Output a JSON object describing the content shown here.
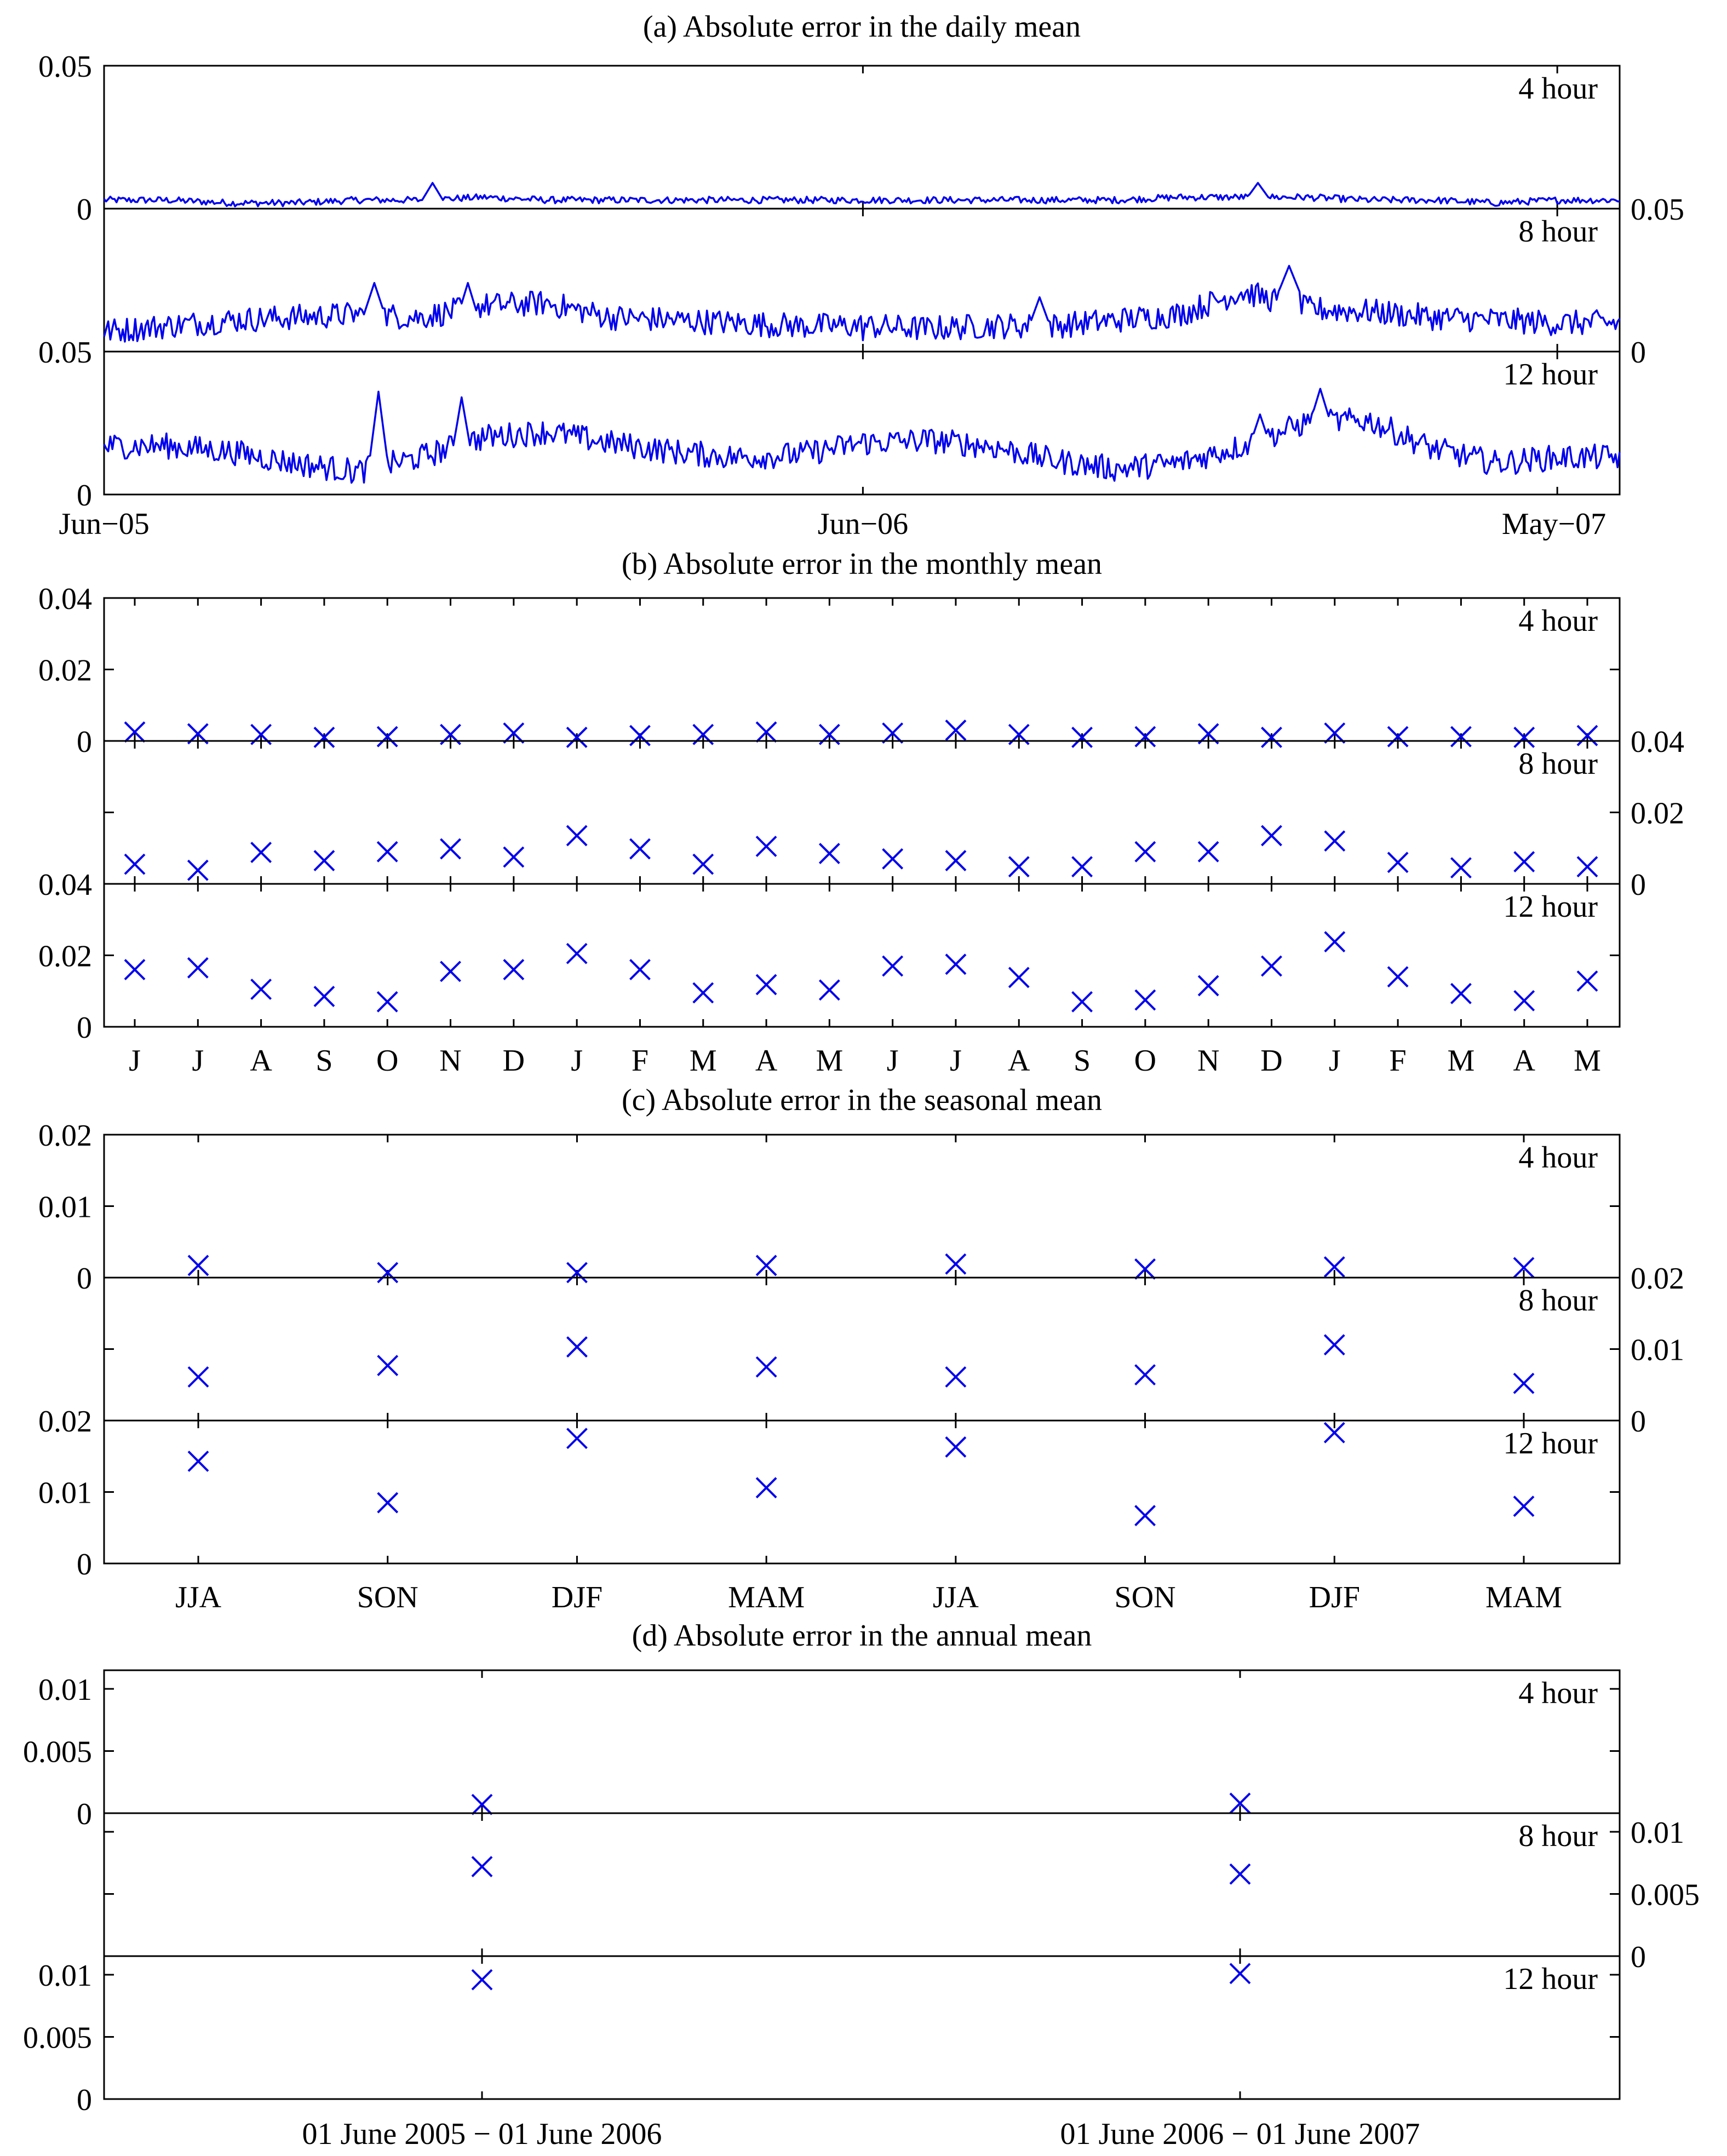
{
  "chart_data": [
    {
      "type": "line",
      "title": "(a) Absolute error in the daily mean",
      "x_tick_labels": [
        "Jun−05",
        "Jun−06",
        "May−07"
      ],
      "x_range": [
        "2005-06-01",
        "2007-05-31"
      ],
      "n_days": 730,
      "stacked_rows": [
        {
          "label": "4 hour",
          "y_axis_side": "left",
          "ylim": [
            0,
            0.05
          ],
          "tick_labels": [
            "0",
            "0.05"
          ],
          "note": "values read approx.; daily noise ~0.001-0.004",
          "baseline_by_month": [
            0.003,
            0.003,
            0.002,
            0.002,
            0.003,
            0.003,
            0.004,
            0.003,
            0.003,
            0.003,
            0.003,
            0.003,
            0.003,
            0.003,
            0.003,
            0.003,
            0.003,
            0.004,
            0.004,
            0.004,
            0.003,
            0.003,
            0.002,
            0.003
          ],
          "peaks": [
            {
              "day": 158,
              "value": 0.009
            },
            {
              "day": 555,
              "value": 0.009
            }
          ]
        },
        {
          "label": "8 hour",
          "y_axis_side": "right",
          "ylim": [
            0,
            0.05
          ],
          "tick_labels": [
            "0",
            "0.05"
          ],
          "baseline_by_month": [
            0.007,
            0.009,
            0.011,
            0.012,
            0.013,
            0.012,
            0.016,
            0.017,
            0.012,
            0.011,
            0.01,
            0.009,
            0.009,
            0.008,
            0.009,
            0.009,
            0.011,
            0.013,
            0.021,
            0.015,
            0.014,
            0.012,
            0.011,
            0.01
          ],
          "peaks": [
            {
              "day": 130,
              "value": 0.024
            },
            {
              "day": 175,
              "value": 0.024
            },
            {
              "day": 570,
              "value": 0.03
            },
            {
              "day": 450,
              "value": 0.019
            }
          ]
        },
        {
          "label": "12 hour",
          "y_axis_side": "left",
          "ylim": [
            0,
            0.05
          ],
          "tick_labels": [
            "0",
            "0.05"
          ],
          "baseline_by_month": [
            0.017,
            0.017,
            0.015,
            0.011,
            0.008,
            0.013,
            0.02,
            0.022,
            0.018,
            0.015,
            0.013,
            0.014,
            0.018,
            0.019,
            0.017,
            0.012,
            0.009,
            0.011,
            0.017,
            0.025,
            0.026,
            0.016,
            0.011,
            0.013
          ],
          "peaks": [
            {
              "day": 132,
              "value": 0.036
            },
            {
              "day": 172,
              "value": 0.034
            },
            {
              "day": 556,
              "value": 0.028
            },
            {
              "day": 585,
              "value": 0.037
            }
          ]
        }
      ]
    },
    {
      "type": "scatter",
      "title": "(b) Absolute error in the monthly mean",
      "categories": [
        "J",
        "J",
        "A",
        "S",
        "O",
        "N",
        "D",
        "J",
        "F",
        "M",
        "A",
        "M",
        "J",
        "J",
        "A",
        "S",
        "O",
        "N",
        "D",
        "J",
        "F",
        "M",
        "A",
        "M"
      ],
      "stacked_rows": [
        {
          "label": "4 hour",
          "y_axis_side": "left",
          "ylim": [
            0,
            0.04
          ],
          "tick_labels": [
            "0",
            "0.02",
            "0.04"
          ],
          "values": [
            0.0025,
            0.002,
            0.0018,
            0.001,
            0.0012,
            0.0018,
            0.0022,
            0.001,
            0.0015,
            0.0018,
            0.0025,
            0.0018,
            0.0022,
            0.003,
            0.0018,
            0.001,
            0.0012,
            0.002,
            0.001,
            0.0022,
            0.0012,
            0.0012,
            0.001,
            0.0015
          ]
        },
        {
          "label": "8 hour",
          "y_axis_side": "right",
          "ylim": [
            0,
            0.04
          ],
          "tick_labels": [
            "0",
            "0.02",
            "0.04"
          ],
          "values": [
            0.0055,
            0.0038,
            0.0088,
            0.0065,
            0.009,
            0.0098,
            0.0075,
            0.0135,
            0.0098,
            0.0055,
            0.0105,
            0.0085,
            0.007,
            0.0065,
            0.0048,
            0.0048,
            0.009,
            0.009,
            0.0135,
            0.012,
            0.006,
            0.0045,
            0.0062,
            0.0048
          ]
        },
        {
          "label": "12 hour",
          "y_axis_side": "left",
          "ylim": [
            0,
            0.04
          ],
          "tick_labels": [
            "0",
            "0.02",
            "0.04"
          ],
          "values": [
            0.016,
            0.0165,
            0.0105,
            0.0085,
            0.007,
            0.0155,
            0.016,
            0.0205,
            0.016,
            0.0095,
            0.0118,
            0.0103,
            0.017,
            0.0175,
            0.0138,
            0.007,
            0.0075,
            0.0115,
            0.017,
            0.0238,
            0.014,
            0.0093,
            0.0073,
            0.0128
          ]
        }
      ]
    },
    {
      "type": "scatter",
      "title": "(c) Absolute error in the seasonal mean",
      "categories": [
        "JJA",
        "SON",
        "DJF",
        "MAM",
        "JJA",
        "SON",
        "DJF",
        "MAM"
      ],
      "stacked_rows": [
        {
          "label": "4 hour",
          "y_axis_side": "left",
          "ylim": [
            0,
            0.02
          ],
          "tick_labels": [
            "0",
            "0.01",
            "0.02"
          ],
          "values": [
            0.0017,
            0.0007,
            0.0007,
            0.0017,
            0.0019,
            0.0012,
            0.0015,
            0.0014
          ]
        },
        {
          "label": "8 hour",
          "y_axis_side": "right",
          "ylim": [
            0,
            0.02
          ],
          "tick_labels": [
            "0",
            "0.01",
            "0.02"
          ],
          "values": [
            0.0061,
            0.0077,
            0.0103,
            0.0075,
            0.0061,
            0.0064,
            0.0106,
            0.0052
          ]
        },
        {
          "label": "12 hour",
          "y_axis_side": "left",
          "ylim": [
            0,
            0.02
          ],
          "tick_labels": [
            "0",
            "0.01",
            "0.02"
          ],
          "values": [
            0.0143,
            0.0085,
            0.0175,
            0.0106,
            0.0163,
            0.0067,
            0.0183,
            0.008
          ]
        }
      ]
    },
    {
      "type": "scatter",
      "title": "(d) Absolute error in the annual mean",
      "categories": [
        "01 June 2005 − 01 June 2006",
        "01 June 2006 − 01 June 2007"
      ],
      "stacked_rows": [
        {
          "label": "4 hour",
          "y_axis_side": "left",
          "ylim": [
            0,
            0.0115
          ],
          "tick_labels": [
            "0",
            "0.005",
            "0.01"
          ],
          "values": [
            0.0007,
            0.0008
          ]
        },
        {
          "label": "8 hour",
          "y_axis_side": "right",
          "ylim": [
            0,
            0.0115
          ],
          "tick_labels": [
            "0",
            "0.005",
            "0.01"
          ],
          "values": [
            0.0072,
            0.0066
          ]
        },
        {
          "label": "12 hour",
          "y_axis_side": "left",
          "ylim": [
            0,
            0.0115
          ],
          "tick_labels": [
            "0",
            "0.005",
            "0.01"
          ],
          "values": [
            0.0096,
            0.0101
          ]
        }
      ]
    }
  ]
}
